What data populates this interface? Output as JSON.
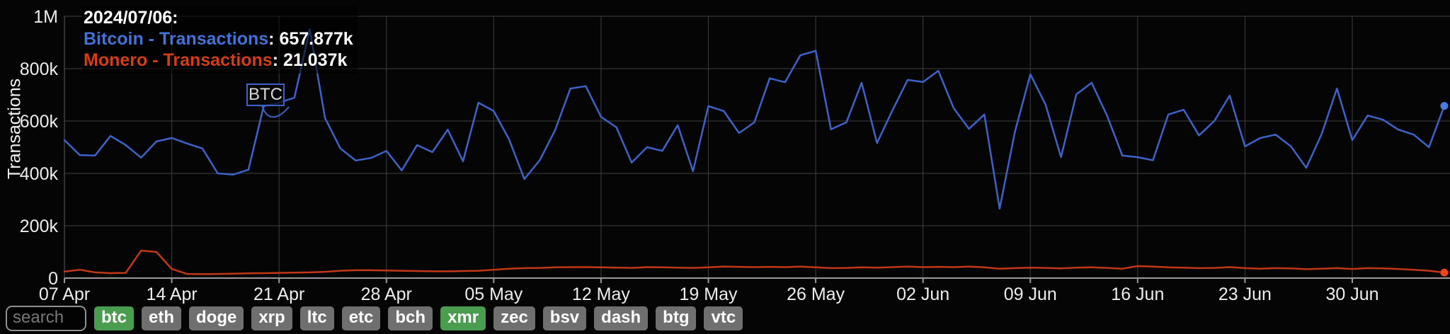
{
  "chart_data": {
    "type": "line",
    "title": "",
    "ylabel": "Transactions",
    "units": "thousands of transactions per day",
    "x_tick_labels": [
      "07 Apr",
      "14 Apr",
      "21 Apr",
      "28 Apr",
      "05 May",
      "12 May",
      "19 May",
      "26 May",
      "02 Jun",
      "09 Jun",
      "16 Jun",
      "23 Jun",
      "30 Jun"
    ],
    "x_tick_day_interval": 7,
    "x_days_total": 90,
    "y_tick_labels": [
      "0",
      "200k",
      "400k",
      "600k",
      "800k",
      "1M"
    ],
    "y_tick_values": [
      0,
      200,
      400,
      600,
      800,
      1000
    ],
    "ylim": [
      0,
      1000
    ],
    "grid": true,
    "legend_position": "tooltip-top-left",
    "series": [
      {
        "name": "Bitcoin - Transactions",
        "color": "#3d63c9",
        "dot_color": "#4b7be0",
        "values": [
          527,
          470,
          468,
          543,
          508,
          460,
          522,
          535,
          514,
          495,
          400,
          395,
          414,
          657,
          670,
          689,
          950,
          611,
          495,
          449,
          459,
          486,
          411,
          508,
          481,
          567,
          446,
          670,
          638,
          530,
          378,
          450,
          565,
          724,
          733,
          616,
          576,
          441,
          500,
          486,
          584,
          408,
          657,
          638,
          554,
          595,
          763,
          748,
          851,
          868,
          568,
          595,
          746,
          516,
          640,
          757,
          749,
          792,
          649,
          570,
          625,
          265,
          560,
          778,
          662,
          462,
          702,
          746,
          621,
          468,
          462,
          450,
          625,
          643,
          545,
          600,
          697,
          503,
          535,
          548,
          503,
          421,
          550,
          724,
          527,
          621,
          605,
          567,
          548,
          500,
          657.877
        ]
      },
      {
        "name": "Monero - Transactions",
        "color": "#c23717",
        "dot_color": "#ee4418",
        "values": [
          25,
          32,
          22,
          19,
          20,
          105,
          100,
          35,
          16,
          15,
          16,
          17,
          18,
          19,
          20,
          21,
          22,
          24,
          28,
          30,
          30,
          29,
          28,
          27,
          26,
          26,
          27,
          28,
          32,
          36,
          38,
          39,
          41,
          42,
          42,
          41,
          40,
          39,
          42,
          41,
          40,
          39,
          41,
          44,
          43,
          42,
          43,
          42,
          44,
          41,
          38,
          39,
          41,
          40,
          42,
          44,
          42,
          43,
          42,
          44,
          41,
          36,
          38,
          40,
          39,
          37,
          40,
          41,
          39,
          36,
          46,
          44,
          41,
          40,
          38,
          39,
          42,
          38,
          36,
          38,
          37,
          34,
          36,
          38,
          35,
          38,
          37,
          35,
          32,
          28,
          21.037
        ]
      }
    ]
  },
  "tooltip": {
    "date": "2024/07/06:",
    "rows": [
      {
        "label": "Bitcoin - Transactions",
        "value": ": 657.877k",
        "color": "#4272d7"
      },
      {
        "label": "Monero - Transactions",
        "value": ": 21.037k",
        "color": "#d63c15"
      }
    ]
  },
  "annotation": {
    "label": "BTC"
  },
  "controls": {
    "search_placeholder": "search",
    "active_color": "#4a9c4f",
    "inactive_color": "#6f6f6f",
    "coins": [
      {
        "label": "btc",
        "active": true
      },
      {
        "label": "eth",
        "active": false
      },
      {
        "label": "doge",
        "active": false
      },
      {
        "label": "xrp",
        "active": false
      },
      {
        "label": "ltc",
        "active": false
      },
      {
        "label": "etc",
        "active": false
      },
      {
        "label": "bch",
        "active": false
      },
      {
        "label": "xmr",
        "active": true
      },
      {
        "label": "zec",
        "active": false
      },
      {
        "label": "bsv",
        "active": false
      },
      {
        "label": "dash",
        "active": false
      },
      {
        "label": "btg",
        "active": false
      },
      {
        "label": "vtc",
        "active": false
      }
    ]
  },
  "colors": {
    "background": "#050505",
    "gridline": "#3e3e3e",
    "axis": "#999999",
    "tick_text": "#ededed"
  }
}
